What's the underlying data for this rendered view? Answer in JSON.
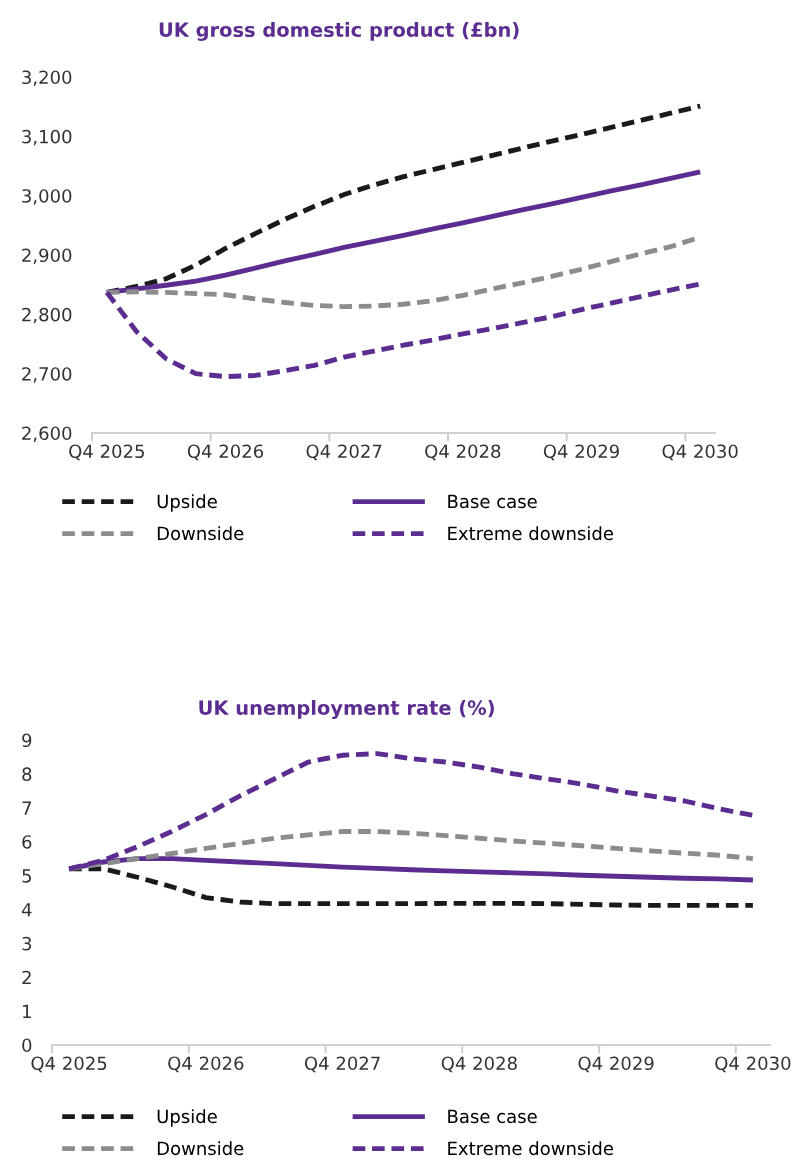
{
  "chart_data": [
    {
      "type": "line",
      "title": "UK gross domestic product (£bn)",
      "categories": [
        "Q4 2025",
        null,
        null,
        null,
        "Q4 2026",
        null,
        null,
        null,
        "Q4 2027",
        null,
        null,
        null,
        "Q4 2028",
        null,
        null,
        null,
        "Q4 2029",
        null,
        null,
        null,
        "Q4 2030"
      ],
      "series": [
        {
          "name": "Upside",
          "color": "#1a1a1a",
          "line_style": "dashed",
          "values": [
            2837,
            2847,
            2860,
            2883,
            2911,
            2936,
            2960,
            2982,
            3002,
            3018,
            3032,
            3044,
            3056,
            3068,
            3080,
            3092,
            3103,
            3115,
            3127,
            3139,
            3151
          ]
        },
        {
          "name": "Base case",
          "color": "#5c2d91",
          "line_style": "solid",
          "values": [
            2837,
            2843,
            2849,
            2856,
            2866,
            2878,
            2890,
            2901,
            2913,
            2923,
            2933,
            2944,
            2954,
            2965,
            2976,
            2986,
            2997,
            3008,
            3018,
            3029,
            3040
          ]
        },
        {
          "name": "Downside",
          "color": "#8c8c8c",
          "line_style": "dashed",
          "values": [
            2837,
            2838,
            2837,
            2835,
            2833,
            2826,
            2820,
            2815,
            2813,
            2814,
            2817,
            2823,
            2832,
            2843,
            2853,
            2864,
            2876,
            2889,
            2902,
            2914,
            2930
          ]
        },
        {
          "name": "Extreme downside",
          "color": "#5c2d91",
          "line_style": "dashed",
          "values": [
            2837,
            2771,
            2725,
            2700,
            2695,
            2697,
            2705,
            2714,
            2728,
            2738,
            2748,
            2757,
            2767,
            2776,
            2786,
            2796,
            2808,
            2819,
            2830,
            2841,
            2851
          ]
        }
      ],
      "ylim": [
        2600,
        3200
      ],
      "yticks": [
        {
          "value": 2600,
          "label": "2,600"
        },
        {
          "value": 2700,
          "label": "2,700"
        },
        {
          "value": 2800,
          "label": "2,800"
        },
        {
          "value": 2900,
          "label": "2,900"
        },
        {
          "value": 3000,
          "label": "3,000"
        },
        {
          "value": 3100,
          "label": "3,100"
        },
        {
          "value": 3200,
          "label": "3,200"
        }
      ],
      "grid": false,
      "legend": "bottom",
      "marker": "none"
    },
    {
      "type": "line",
      "title": "UK unemployment rate (%)",
      "categories": [
        "Q4 2025",
        null,
        null,
        null,
        "Q4 2026",
        null,
        null,
        null,
        "Q4 2027",
        null,
        null,
        null,
        "Q4 2028",
        null,
        null,
        null,
        "Q4 2029",
        null,
        null,
        null,
        "Q4 2030"
      ],
      "series": [
        {
          "name": "Upside",
          "color": "#1a1a1a",
          "line_style": "dashed",
          "values": [
            5.2,
            5.2,
            4.95,
            4.67,
            4.35,
            4.22,
            4.17,
            4.17,
            4.17,
            4.17,
            4.17,
            4.18,
            4.18,
            4.18,
            4.17,
            4.15,
            4.13,
            4.12,
            4.12,
            4.12,
            4.12
          ]
        },
        {
          "name": "Base case",
          "color": "#5c2d91",
          "line_style": "solid",
          "values": [
            5.2,
            5.4,
            5.5,
            5.5,
            5.45,
            5.4,
            5.35,
            5.3,
            5.25,
            5.21,
            5.17,
            5.14,
            5.11,
            5.08,
            5.05,
            5.01,
            4.98,
            4.95,
            4.92,
            4.9,
            4.87
          ]
        },
        {
          "name": "Downside",
          "color": "#8c8c8c",
          "line_style": "dashed",
          "values": [
            5.2,
            5.35,
            5.5,
            5.65,
            5.8,
            5.95,
            6.1,
            6.2,
            6.3,
            6.3,
            6.25,
            6.18,
            6.1,
            6.02,
            5.95,
            5.88,
            5.8,
            5.73,
            5.66,
            5.6,
            5.5
          ]
        },
        {
          "name": "Extreme downside",
          "color": "#5c2d91",
          "line_style": "dashed",
          "values": [
            5.2,
            5.45,
            5.85,
            6.3,
            6.8,
            7.35,
            7.85,
            8.35,
            8.55,
            8.6,
            8.45,
            8.35,
            8.2,
            8.0,
            7.85,
            7.7,
            7.5,
            7.35,
            7.2,
            6.97,
            6.78
          ]
        }
      ],
      "ylim": [
        0,
        9
      ],
      "yticks": [
        0,
        1,
        2,
        3,
        4,
        5,
        6,
        7,
        8,
        9
      ],
      "grid": false,
      "legend": "bottom",
      "marker": "none"
    }
  ]
}
